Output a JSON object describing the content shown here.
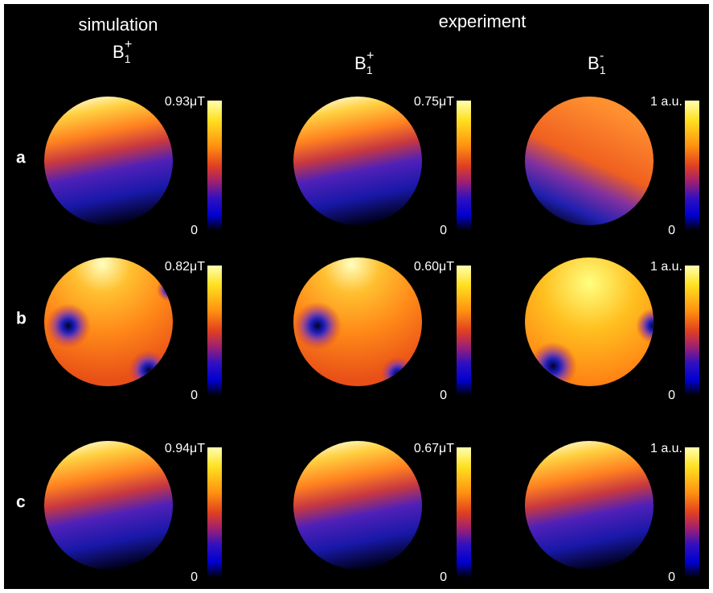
{
  "headers": {
    "simulation": "simulation",
    "experiment": "experiment"
  },
  "columns": [
    {
      "symbol": "B",
      "subscript": "1",
      "superscript": "+"
    },
    {
      "symbol": "B",
      "subscript": "1",
      "superscript": "+"
    },
    {
      "symbol": "B",
      "subscript": "1",
      "superscript": "-"
    }
  ],
  "rows": [
    {
      "label": "a",
      "scales": [
        {
          "max": "0.93μT",
          "min": "0"
        },
        {
          "max": "0.75μT",
          "min": "0"
        },
        {
          "max": "1 a.u.",
          "min": "0"
        }
      ]
    },
    {
      "label": "b",
      "scales": [
        {
          "max": "0.82μT",
          "min": "0"
        },
        {
          "max": "0.60μT",
          "min": "0"
        },
        {
          "max": "1 a.u.",
          "min": "0"
        }
      ]
    },
    {
      "label": "c",
      "scales": [
        {
          "max": "0.94μT",
          "min": "0"
        },
        {
          "max": "0.67μT",
          "min": "0"
        },
        {
          "max": "1 a.u.",
          "min": "0"
        }
      ]
    }
  ]
}
